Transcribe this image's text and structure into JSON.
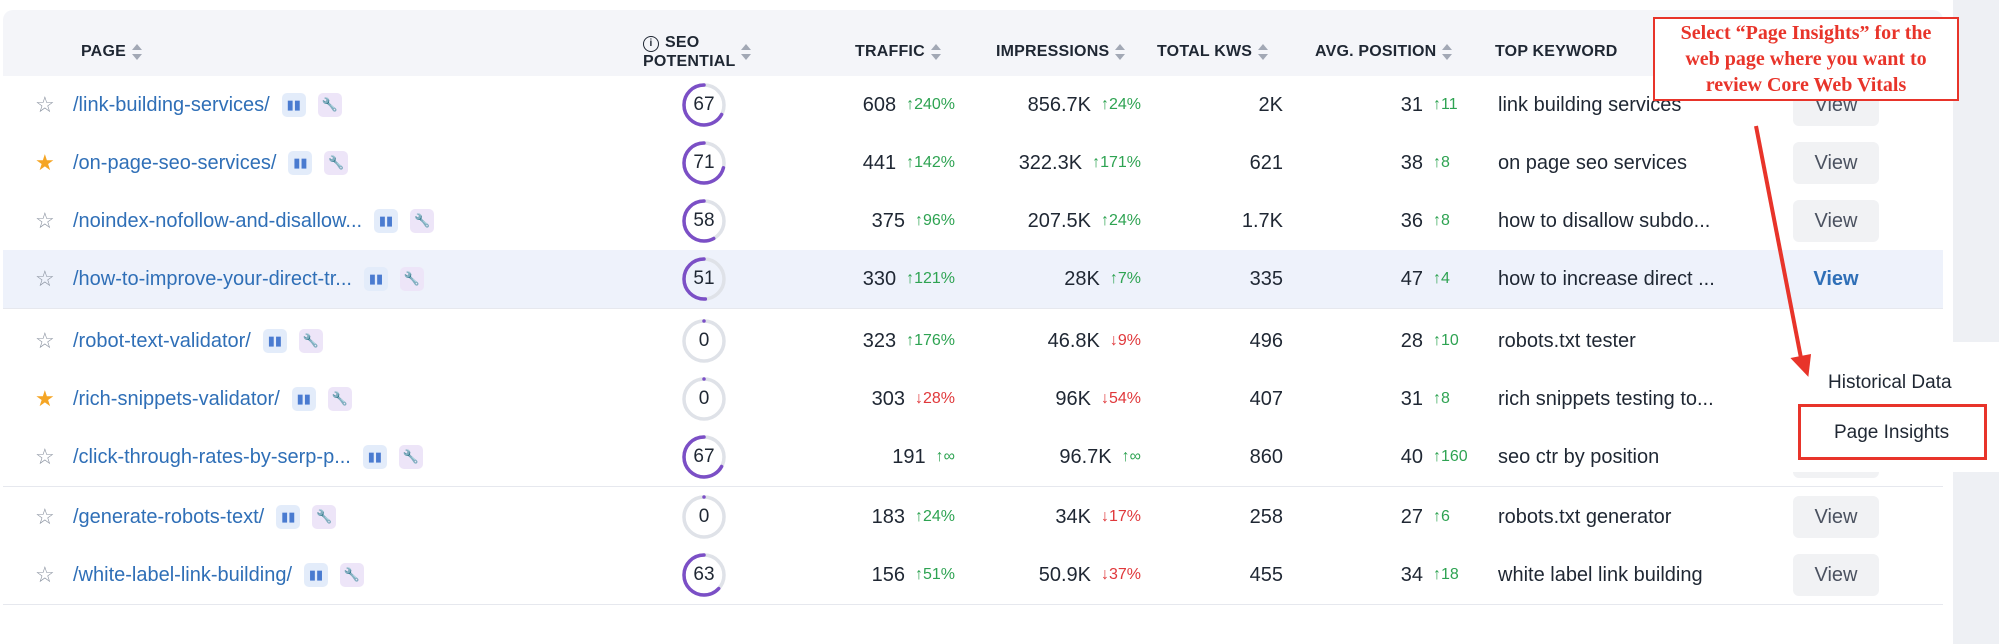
{
  "columns": {
    "page": "PAGE",
    "seo_potential_line1": "SEO",
    "seo_potential_line2": "POTENTIAL",
    "traffic": "TRAFFIC",
    "impressions": "IMPRESSIONS",
    "total_kws": "TOTAL KWS",
    "avg_position": "AVG. POSITION",
    "top_keyword": "TOP KEYWORD"
  },
  "rows": [
    {
      "starred": false,
      "page": "/link-building-services/",
      "seo": "67",
      "seo_pct": 0.67,
      "traffic": "608",
      "traffic_delta": "240%",
      "traffic_dir": "up",
      "impressions": "856.7K",
      "impr_delta": "24%",
      "impr_dir": "up",
      "kws": "2K",
      "pos": "31",
      "pos_delta": "11",
      "pos_dir": "up",
      "keyword": "link building services",
      "action": "View"
    },
    {
      "starred": true,
      "page": "/on-page-seo-services/",
      "seo": "71",
      "seo_pct": 0.71,
      "traffic": "441",
      "traffic_delta": "142%",
      "traffic_dir": "up",
      "impressions": "322.3K",
      "impr_delta": "171%",
      "impr_dir": "up",
      "kws": "621",
      "pos": "38",
      "pos_delta": "8",
      "pos_dir": "up",
      "keyword": "on page seo services",
      "action": "View"
    },
    {
      "starred": false,
      "page": "/noindex-nofollow-and-disallow...",
      "seo": "58",
      "seo_pct": 0.58,
      "traffic": "375",
      "traffic_delta": "96%",
      "traffic_dir": "up",
      "impressions": "207.5K",
      "impr_delta": "24%",
      "impr_dir": "up",
      "kws": "1.7K",
      "pos": "36",
      "pos_delta": "8",
      "pos_dir": "up",
      "keyword": "how to disallow subdo...",
      "action": "View"
    },
    {
      "starred": false,
      "page": "/how-to-improve-your-direct-tr...",
      "seo": "51",
      "seo_pct": 0.51,
      "traffic": "330",
      "traffic_delta": "121%",
      "traffic_dir": "up",
      "impressions": "28K",
      "impr_delta": "7%",
      "impr_dir": "up",
      "kws": "335",
      "pos": "47",
      "pos_delta": "4",
      "pos_dir": "up",
      "keyword": "how to increase direct ...",
      "action": "View",
      "highlight": true
    },
    {
      "starred": false,
      "page": "/robot-text-validator/",
      "seo": "0",
      "seo_pct": 0,
      "traffic": "323",
      "traffic_delta": "176%",
      "traffic_dir": "up",
      "impressions": "46.8K",
      "impr_delta": "9%",
      "impr_dir": "down",
      "kws": "496",
      "pos": "28",
      "pos_delta": "10",
      "pos_dir": "up",
      "keyword": "robots.txt tester",
      "action": ""
    },
    {
      "starred": true,
      "page": "/rich-snippets-validator/",
      "seo": "0",
      "seo_pct": 0,
      "traffic": "303",
      "traffic_delta": "28%",
      "traffic_dir": "down",
      "impressions": "96K",
      "impr_delta": "54%",
      "impr_dir": "down",
      "kws": "407",
      "pos": "31",
      "pos_delta": "8",
      "pos_dir": "up",
      "keyword": "rich snippets testing to...",
      "action": ""
    },
    {
      "starred": false,
      "page": "/click-through-rates-by-serp-p...",
      "seo": "67",
      "seo_pct": 0.67,
      "traffic": "191",
      "traffic_delta": "∞",
      "traffic_dir": "up",
      "impressions": "96.7K",
      "impr_delta": "∞",
      "impr_dir": "up",
      "kws": "860",
      "pos": "40",
      "pos_delta": "160",
      "pos_dir": "up",
      "keyword": "seo ctr by position",
      "action": "View"
    },
    {
      "starred": false,
      "page": "/generate-robots-text/",
      "seo": "0",
      "seo_pct": 0,
      "traffic": "183",
      "traffic_delta": "24%",
      "traffic_dir": "up",
      "impressions": "34K",
      "impr_delta": "17%",
      "impr_dir": "down",
      "kws": "258",
      "pos": "27",
      "pos_delta": "6",
      "pos_dir": "up",
      "keyword": "robots.txt generator",
      "action": "View"
    },
    {
      "starred": false,
      "page": "/white-label-link-building/",
      "seo": "63",
      "seo_pct": 0.63,
      "traffic": "156",
      "traffic_delta": "51%",
      "traffic_dir": "up",
      "impressions": "50.9K",
      "impr_delta": "37%",
      "impr_dir": "down",
      "kws": "455",
      "pos": "34",
      "pos_delta": "18",
      "pos_dir": "up",
      "keyword": "white label link building",
      "action": "View"
    }
  ],
  "dropdown": {
    "historical": "Historical Data",
    "insights": "Page Insights"
  },
  "annotation": {
    "text": "Select “Page Insights” for the web page where you want to review Core Web Vitals"
  },
  "colors": {
    "link": "#2f6fb7",
    "up": "#2ea352",
    "down": "#e0383b",
    "gauge": "#7b4fc6",
    "annotation": "#e8342a",
    "star_on": "#f5a524"
  },
  "icons": {
    "star": "star-icon",
    "chart": "bar-chart-icon",
    "wrench": "wrench-icon",
    "info": "info-icon",
    "sort": "sort-icon"
  }
}
